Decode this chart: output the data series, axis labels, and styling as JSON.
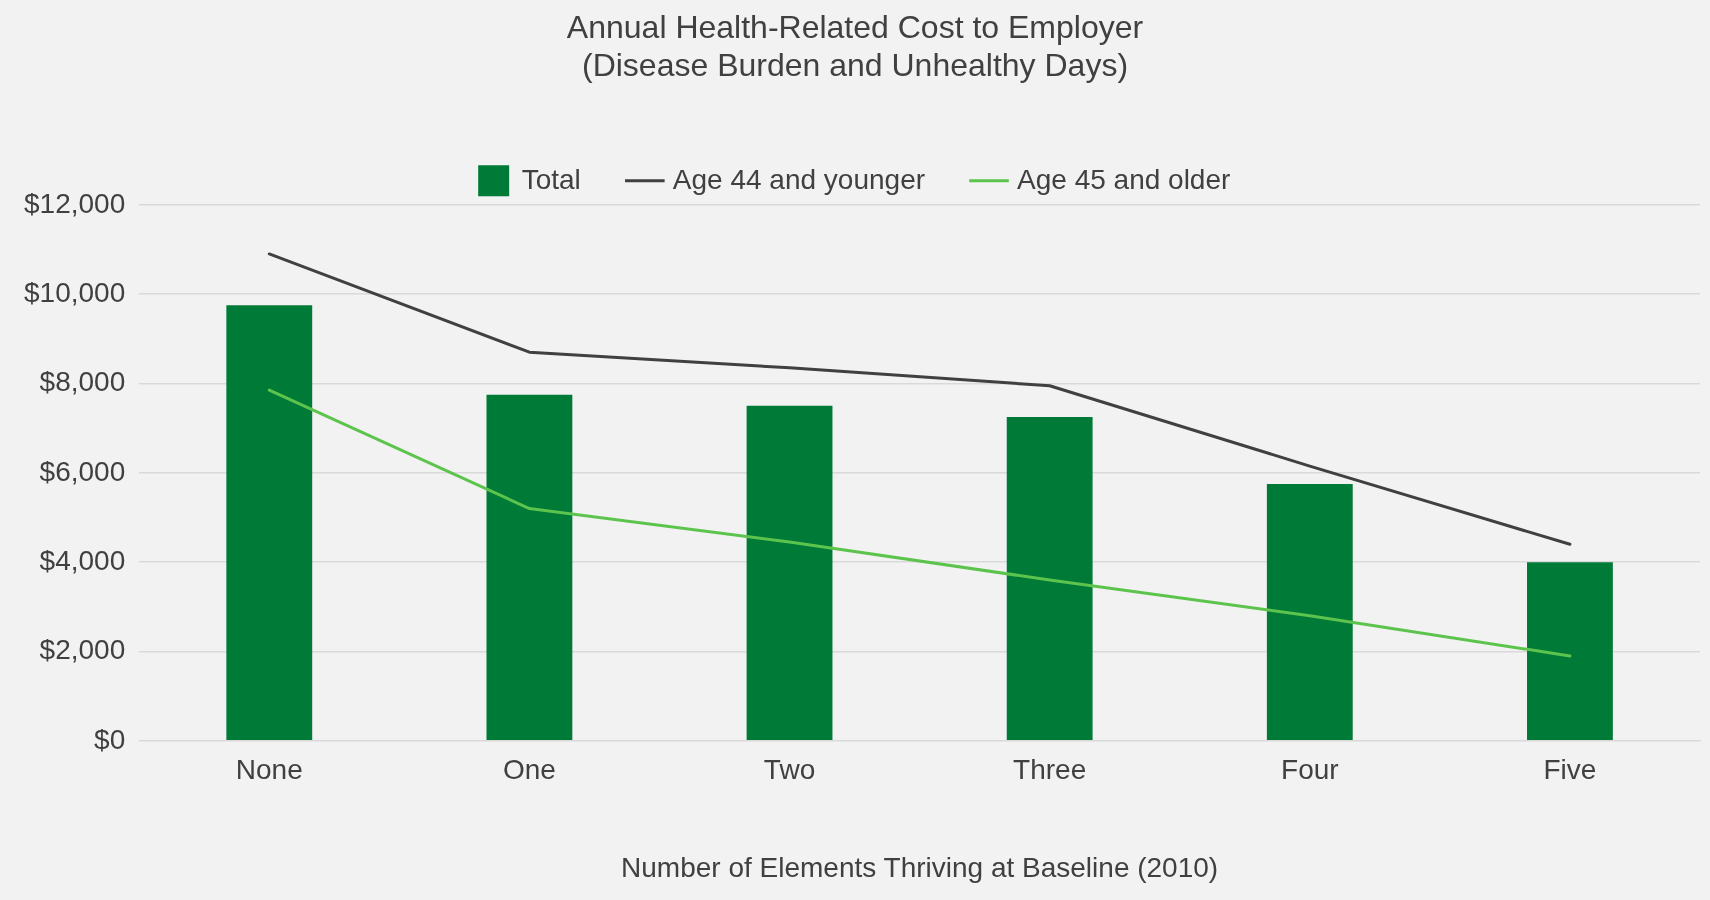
{
  "chart_data": {
    "type": "bar",
    "title": [
      "Annual Health-Related Cost to Employer",
      "(Disease Burden and Unhealthy Days)"
    ],
    "xlabel": "Number of Elements Thriving at Baseline (2010)",
    "categories": [
      "None",
      "One",
      "Two",
      "Three",
      "Four",
      "Five"
    ],
    "series": [
      {
        "name": "Total",
        "color": "#007a37",
        "values": [
          9750,
          7750,
          7500,
          7250,
          5750,
          4000
        ]
      },
      {
        "name": "Age 44 and younger",
        "type": "line",
        "color": "#404040",
        "values": [
          10900,
          8700,
          8350,
          7950,
          6150,
          4400
        ]
      },
      {
        "name": "Age 45 and older",
        "type": "line",
        "color": "#5cc44c",
        "values": [
          7850,
          5200,
          4450,
          3600,
          2800,
          1900
        ]
      }
    ],
    "ylim": [
      0,
      12000
    ],
    "yticks": [
      {
        "value": 0,
        "label": "$0"
      },
      {
        "value": 2000,
        "label": "$2,000"
      },
      {
        "value": 4000,
        "label": "$4,000"
      },
      {
        "value": 6000,
        "label": "$6,000"
      },
      {
        "value": 8000,
        "label": "$8,000"
      },
      {
        "value": 10000,
        "label": "$10,000"
      },
      {
        "value": 12000,
        "label": "$12,000"
      }
    ],
    "grid": "y",
    "legend": "top",
    "marker": "none",
    "line_style": "solid"
  }
}
